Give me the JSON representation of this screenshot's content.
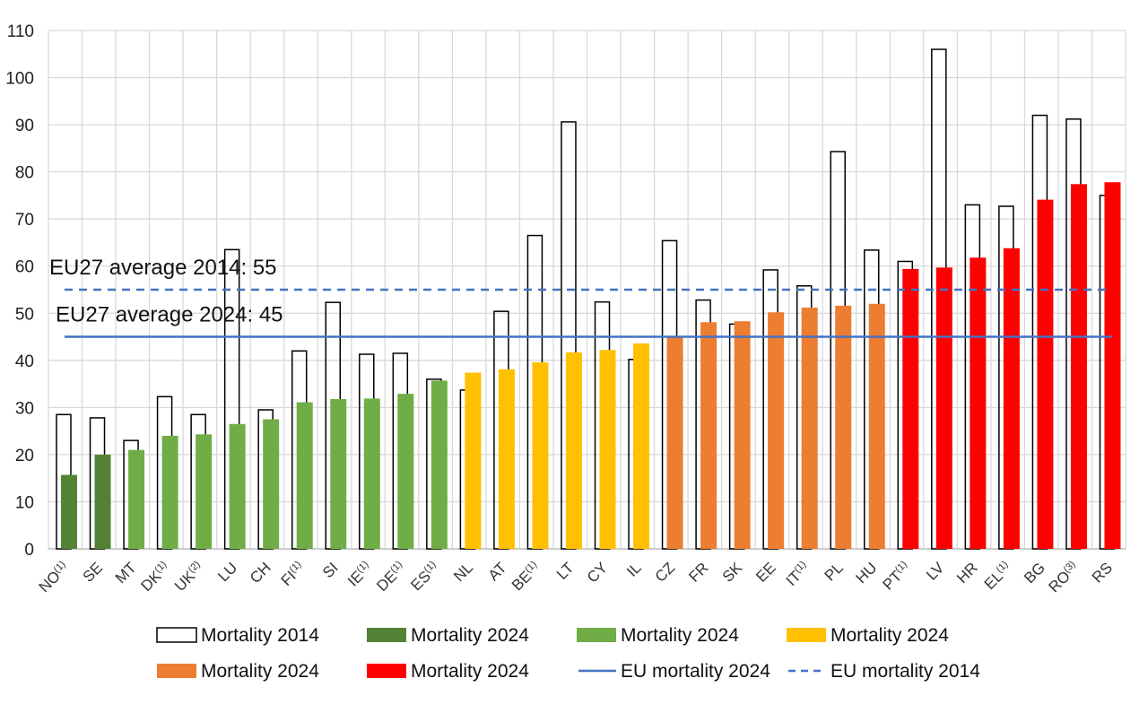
{
  "chart_data": {
    "type": "bar",
    "categories": [
      {
        "code": "NO",
        "sup": "(1)"
      },
      {
        "code": "SE",
        "sup": ""
      },
      {
        "code": "MT",
        "sup": ""
      },
      {
        "code": "DK",
        "sup": "(1)"
      },
      {
        "code": "UK",
        "sup": "(2)"
      },
      {
        "code": "LU",
        "sup": ""
      },
      {
        "code": "CH",
        "sup": ""
      },
      {
        "code": "FI",
        "sup": "(1)"
      },
      {
        "code": "SI",
        "sup": ""
      },
      {
        "code": "IE",
        "sup": "(1)"
      },
      {
        "code": "DE",
        "sup": "(1)"
      },
      {
        "code": "ES",
        "sup": "(1)"
      },
      {
        "code": "NL",
        "sup": ""
      },
      {
        "code": "AT",
        "sup": ""
      },
      {
        "code": "BE",
        "sup": "(1)"
      },
      {
        "code": "LT",
        "sup": ""
      },
      {
        "code": "CY",
        "sup": ""
      },
      {
        "code": "IL",
        "sup": ""
      },
      {
        "code": "CZ",
        "sup": ""
      },
      {
        "code": "FR",
        "sup": ""
      },
      {
        "code": "SK",
        "sup": ""
      },
      {
        "code": "EE",
        "sup": ""
      },
      {
        "code": "IT",
        "sup": "(1)"
      },
      {
        "code": "PL",
        "sup": ""
      },
      {
        "code": "HU",
        "sup": ""
      },
      {
        "code": "PT",
        "sup": "(1)"
      },
      {
        "code": "LV",
        "sup": ""
      },
      {
        "code": "HR",
        "sup": ""
      },
      {
        "code": "EL",
        "sup": "(1)"
      },
      {
        "code": "BG",
        "sup": ""
      },
      {
        "code": "RO",
        "sup": "(3)"
      },
      {
        "code": "RS",
        "sup": ""
      }
    ],
    "series": [
      {
        "name": "Mortality 2014",
        "values": [
          28.5,
          27.8,
          23.0,
          32.3,
          28.5,
          63.5,
          29.5,
          42.0,
          52.3,
          41.3,
          41.5,
          36.0,
          33.7,
          50.4,
          66.5,
          90.6,
          52.4,
          40.2,
          65.4,
          52.8,
          47.7,
          59.2,
          55.8,
          84.3,
          63.4,
          61.0,
          106.0,
          73.0,
          72.7,
          92.0,
          91.2,
          75.0
        ]
      },
      {
        "name": "Mortality 2024",
        "values": [
          15.7,
          20.0,
          21.0,
          24.0,
          24.3,
          26.5,
          27.5,
          31.1,
          31.8,
          31.9,
          32.9,
          35.7,
          37.4,
          38.1,
          39.6,
          41.7,
          42.2,
          43.6,
          45.2,
          48.1,
          48.3,
          50.2,
          51.2,
          51.6,
          52.0,
          59.4,
          59.7,
          61.8,
          63.8,
          74.1,
          77.4,
          77.8
        ]
      }
    ],
    "group_colors": [
      "#548235",
      "#548235",
      "#70ad47",
      "#70ad47",
      "#70ad47",
      "#70ad47",
      "#70ad47",
      "#70ad47",
      "#70ad47",
      "#70ad47",
      "#70ad47",
      "#70ad47",
      "#ffc000",
      "#ffc000",
      "#ffc000",
      "#ffc000",
      "#ffc000",
      "#ffc000",
      "#ed7d31",
      "#ed7d31",
      "#ed7d31",
      "#ed7d31",
      "#ed7d31",
      "#ed7d31",
      "#ed7d31",
      "#ff0000",
      "#ff0000",
      "#ff0000",
      "#ff0000",
      "#ff0000",
      "#ff0000",
      "#ff0000"
    ],
    "reference_lines": [
      {
        "label": "EU27 average 2014: 55",
        "value": 55,
        "style": "dashed",
        "color": "#4472c4"
      },
      {
        "label": "EU27 average 2024: 45",
        "value": 45,
        "style": "solid",
        "color": "#4472c4"
      }
    ],
    "ylim": [
      0,
      110
    ],
    "yticks": [
      0,
      10,
      20,
      30,
      40,
      50,
      60,
      70,
      80,
      90,
      100,
      110
    ],
    "grid": true,
    "legend_position": "bottom",
    "legend": [
      {
        "label": "Mortality 2014",
        "kind": "hollow",
        "color": "#000000"
      },
      {
        "label": "Mortality 2024",
        "kind": "fill",
        "color": "#548235"
      },
      {
        "label": "Mortality 2024",
        "kind": "fill",
        "color": "#70ad47"
      },
      {
        "label": "Mortality 2024",
        "kind": "fill",
        "color": "#ffc000"
      },
      {
        "label": "Mortality 2024",
        "kind": "fill",
        "color": "#ed7d31"
      },
      {
        "label": "Mortality 2024",
        "kind": "fill",
        "color": "#ff0000"
      },
      {
        "label": "EU mortality 2024",
        "kind": "solid-line",
        "color": "#4472c4"
      },
      {
        "label": "EU mortality 2014",
        "kind": "dashed-line",
        "color": "#4472c4"
      }
    ]
  }
}
